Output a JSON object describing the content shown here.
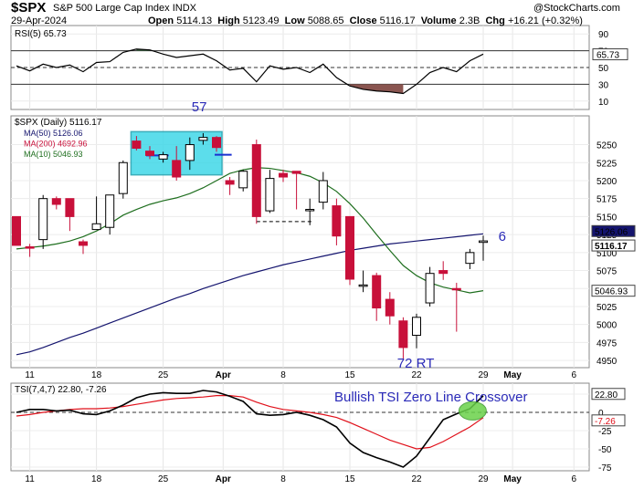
{
  "header": {
    "symbol": "$SPX",
    "name": "S&P 500 Large Cap Index",
    "exchange": "INDX",
    "date": "29-Apr-2024",
    "open_label": "Open",
    "open": "5114.13",
    "high_label": "High",
    "high": "5123.49",
    "low_label": "Low",
    "low": "5088.65",
    "close_label": "Close",
    "close": "5116.17",
    "volume_label": "Volume",
    "volume": "2.3B",
    "chg_label": "Chg",
    "chg": "+16.21 (+0.32%)",
    "watermark": "@StockCharts.com"
  },
  "colors": {
    "up": "#ffffff",
    "down": "#c8103a",
    "ma50": "#14146e",
    "ma200": "#c8103a",
    "ma10": "#1e6e1e",
    "tsi": "#000000",
    "tsi_signal": "#e0101a",
    "highlight": "#40d8e8",
    "annotation": "#2a2ab8",
    "crossover": "#6ad24a",
    "rsi_fill": "#3f6a45",
    "rsi_low_fill": "#8a5550"
  },
  "chart_data": [
    {
      "type": "line",
      "panel": "rsi",
      "label": "RSI(5) 65.73",
      "y_ticks": [
        90,
        70,
        50,
        30,
        10
      ],
      "ylim": [
        0,
        100
      ],
      "reference_lines": [
        70,
        50,
        30
      ],
      "current_value": "65.73",
      "x": [
        "2024-03-08",
        "2024-03-11",
        "2024-03-12",
        "2024-03-13",
        "2024-03-14",
        "2024-03-15",
        "2024-03-18",
        "2024-03-19",
        "2024-03-20",
        "2024-03-21",
        "2024-03-22",
        "2024-03-25",
        "2024-03-26",
        "2024-03-27",
        "2024-03-28",
        "2024-04-01",
        "2024-04-02",
        "2024-04-03",
        "2024-04-04",
        "2024-04-05",
        "2024-04-08",
        "2024-04-09",
        "2024-04-10",
        "2024-04-11",
        "2024-04-12",
        "2024-04-15",
        "2024-04-16",
        "2024-04-17",
        "2024-04-18",
        "2024-04-19",
        "2024-04-22",
        "2024-04-23",
        "2024-04-24",
        "2024-04-25",
        "2024-04-26",
        "2024-04-29"
      ],
      "values": [
        52,
        46,
        54,
        50,
        53,
        45,
        56,
        57,
        68,
        72,
        71,
        66,
        62,
        64,
        66,
        58,
        47,
        49,
        33,
        52,
        48,
        50,
        44,
        54,
        38,
        28,
        24,
        22,
        21,
        19,
        30,
        44,
        50,
        45,
        58,
        66
      ]
    },
    {
      "type": "candlestick",
      "panel": "price",
      "label": "$SPX (Daily) 5116.17",
      "ylim": [
        4940,
        5290
      ],
      "y_ticks": [
        5250,
        5225,
        5200,
        5175,
        5150,
        5125,
        5100,
        5075,
        5050,
        5025,
        5000,
        4975,
        4950
      ],
      "x_ticks": [
        "11",
        "18",
        "25",
        "Apr",
        "8",
        "15",
        "22",
        "29",
        "May",
        "6"
      ],
      "series": [
        {
          "name": "MA(50)",
          "value": "5126.06",
          "label": "MA(50) 5126.06",
          "values": [
            4958,
            4962,
            4968,
            4975,
            4982,
            4988,
            4995,
            5002,
            5009,
            5016,
            5023,
            5030,
            5037,
            5043,
            5050,
            5056,
            5062,
            5068,
            5073,
            5078,
            5083,
            5087,
            5091,
            5095,
            5099,
            5103,
            5106,
            5109,
            5112,
            5114,
            5116,
            5118,
            5120,
            5122,
            5124,
            5126
          ]
        },
        {
          "name": "MA(200)",
          "value": "4692.96",
          "label": "MA(200) 4692.96",
          "values": []
        },
        {
          "name": "MA(10)",
          "value": "5046.93",
          "label": "MA(10) 5046.93",
          "values": [
            5105,
            5107,
            5109,
            5112,
            5116,
            5122,
            5130,
            5140,
            5152,
            5160,
            5167,
            5172,
            5176,
            5182,
            5190,
            5200,
            5210,
            5215,
            5218,
            5217,
            5214,
            5211,
            5206,
            5197,
            5185,
            5168,
            5148,
            5125,
            5103,
            5082,
            5068,
            5058,
            5052,
            5048,
            5044,
            5047
          ]
        }
      ],
      "candles": [
        {
          "d": "2024-03-08",
          "o": 5150,
          "h": 5150,
          "l": 5110,
          "c": 5110
        },
        {
          "d": "2024-03-11",
          "o": 5108,
          "h": 5112,
          "l": 5094,
          "c": 5106
        },
        {
          "d": "2024-03-12",
          "o": 5118,
          "h": 5180,
          "l": 5105,
          "c": 5175
        },
        {
          "d": "2024-03-13",
          "o": 5175,
          "h": 5178,
          "l": 5160,
          "c": 5167
        },
        {
          "d": "2024-03-14",
          "o": 5175,
          "h": 5175,
          "l": 5130,
          "c": 5150
        },
        {
          "d": "2024-03-15",
          "o": 5115,
          "h": 5118,
          "l": 5098,
          "c": 5110
        },
        {
          "d": "2024-03-18",
          "o": 5132,
          "h": 5178,
          "l": 5132,
          "c": 5140
        },
        {
          "d": "2024-03-19",
          "o": 5135,
          "h": 5180,
          "l": 5125,
          "c": 5180
        },
        {
          "d": "2024-03-20",
          "o": 5182,
          "h": 5228,
          "l": 5175,
          "c": 5225
        },
        {
          "d": "2024-03-21",
          "o": 5255,
          "h": 5262,
          "l": 5242,
          "c": 5245
        },
        {
          "d": "2024-03-22",
          "o": 5241,
          "h": 5248,
          "l": 5230,
          "c": 5235
        },
        {
          "d": "2024-03-25",
          "o": 5230,
          "h": 5240,
          "l": 5225,
          "c": 5236
        },
        {
          "d": "2024-03-26",
          "o": 5228,
          "h": 5248,
          "l": 5200,
          "c": 5205
        },
        {
          "d": "2024-03-27",
          "o": 5228,
          "h": 5260,
          "l": 5215,
          "c": 5250
        },
        {
          "d": "2024-03-28",
          "o": 5256,
          "h": 5266,
          "l": 5250,
          "c": 5260
        },
        {
          "d": "2024-04-01",
          "o": 5260,
          "h": 5262,
          "l": 5240,
          "c": 5246
        },
        {
          "d": "2024-04-02",
          "o": 5200,
          "h": 5205,
          "l": 5180,
          "c": 5195
        },
        {
          "d": "2024-04-03",
          "o": 5190,
          "h": 5215,
          "l": 5185,
          "c": 5213
        },
        {
          "d": "2024-04-04",
          "o": 5250,
          "h": 5257,
          "l": 5140,
          "c": 5150
        },
        {
          "d": "2024-04-05",
          "o": 5158,
          "h": 5215,
          "l": 5155,
          "c": 5203
        },
        {
          "d": "2024-04-08",
          "o": 5210,
          "h": 5215,
          "l": 5198,
          "c": 5205
        },
        {
          "d": "2024-04-09",
          "o": 5213,
          "h": 5213,
          "l": 5160,
          "c": 5210
        },
        {
          "d": "2024-04-10",
          "o": 5160,
          "h": 5175,
          "l": 5138,
          "c": 5160
        },
        {
          "d": "2024-04-11",
          "o": 5170,
          "h": 5212,
          "l": 5160,
          "c": 5200
        },
        {
          "d": "2024-04-12",
          "o": 5165,
          "h": 5175,
          "l": 5110,
          "c": 5123
        },
        {
          "d": "2024-04-15",
          "o": 5150,
          "h": 5150,
          "l": 5055,
          "c": 5063
        },
        {
          "d": "2024-04-16",
          "o": 5055,
          "h": 5075,
          "l": 5045,
          "c": 5055
        },
        {
          "d": "2024-04-17",
          "o": 5068,
          "h": 5072,
          "l": 5005,
          "c": 5023
        },
        {
          "d": "2024-04-18",
          "o": 5035,
          "h": 5045,
          "l": 5000,
          "c": 5012
        },
        {
          "d": "2024-04-19",
          "o": 5005,
          "h": 5010,
          "l": 4950,
          "c": 4968
        },
        {
          "d": "2024-04-22",
          "o": 4985,
          "h": 5015,
          "l": 4967,
          "c": 5010
        },
        {
          "d": "2024-04-23",
          "o": 5030,
          "h": 5080,
          "l": 5025,
          "c": 5071
        },
        {
          "d": "2024-04-24",
          "o": 5075,
          "h": 5088,
          "l": 5062,
          "c": 5071
        },
        {
          "d": "2024-04-25",
          "o": 5050,
          "h": 5058,
          "l": 4990,
          "c": 5049
        },
        {
          "d": "2024-04-26",
          "o": 5085,
          "h": 5105,
          "l": 5077,
          "c": 5100
        },
        {
          "d": "2024-04-29",
          "o": 5114.13,
          "h": 5123.49,
          "l": 5088.65,
          "c": 5116.17
        }
      ],
      "annotations": [
        {
          "text": "57",
          "type": "label"
        },
        {
          "text": "6",
          "type": "label"
        },
        {
          "text": "72 RT",
          "type": "label"
        }
      ],
      "right_labels": [
        "5126.06",
        "5116.17",
        "5046.93"
      ]
    },
    {
      "type": "line",
      "panel": "tsi",
      "label": "TSI(7,4,7) 22.80, -7.26",
      "ylim": [
        -80,
        40
      ],
      "y_ticks": [
        25,
        0,
        -25,
        -50,
        -75
      ],
      "reference_lines": [
        0
      ],
      "x_ticks": [
        "11",
        "18",
        "25",
        "Apr",
        "8",
        "15",
        "22",
        "29",
        "May",
        "6"
      ],
      "annotation": "Bullish TSI Zero Line Crossover",
      "right_labels": [
        "22.80",
        "-7.26"
      ],
      "series": [
        {
          "name": "TSI",
          "value": "22.80",
          "values": [
            0,
            4,
            4,
            2,
            3,
            -2,
            -3,
            2,
            10,
            20,
            25,
            27,
            26,
            26,
            30,
            28,
            22,
            15,
            -2,
            -4,
            -3,
            0,
            -4,
            -10,
            -20,
            -42,
            -55,
            -62,
            -68,
            -75,
            -60,
            -35,
            -10,
            -2,
            5,
            22.8
          ]
        },
        {
          "name": "Signal",
          "value": "-7.26",
          "values": [
            -5,
            -3,
            0,
            2,
            4,
            5,
            5,
            6,
            8,
            11,
            14,
            17,
            19,
            20,
            21,
            23,
            23,
            21,
            14,
            8,
            4,
            2,
            0,
            -3,
            -7,
            -14,
            -22,
            -30,
            -38,
            -44,
            -50,
            -48,
            -40,
            -30,
            -20,
            -7.26
          ]
        }
      ]
    }
  ]
}
